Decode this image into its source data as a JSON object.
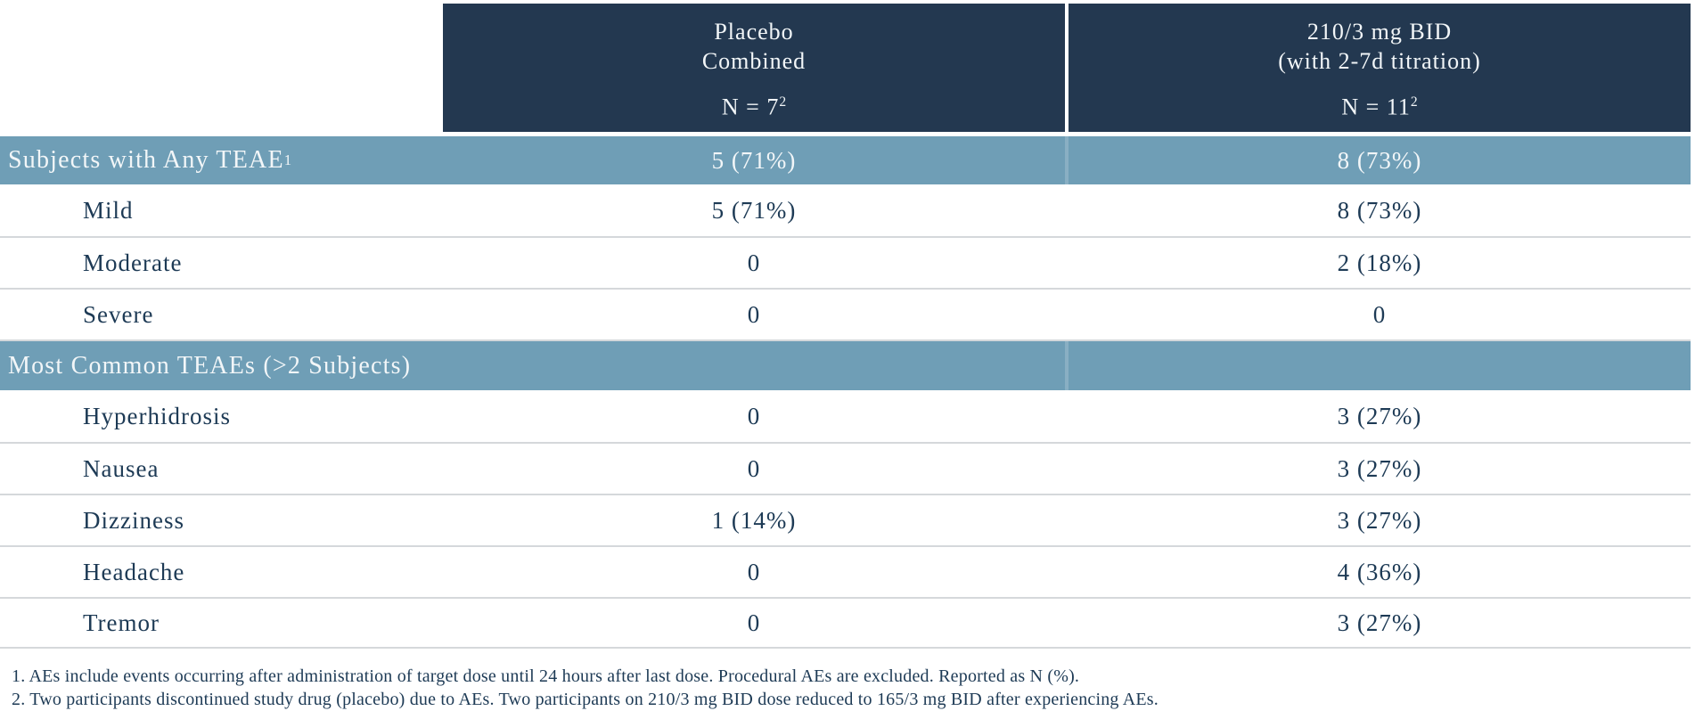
{
  "colors": {
    "header_background": "#233850",
    "section_background": "#6f9eb6",
    "body_text": "#1d3a55",
    "header_text": "#f2f6f8",
    "divider": "#d5d8db"
  },
  "table": {
    "columns": [
      {
        "title_line1": "Placebo",
        "title_line2": "Combined",
        "n_text": "N = 7",
        "n_sup": "2"
      },
      {
        "title_line1": "210/3 mg BID",
        "title_line2": "(with 2-7d titration)",
        "n_text": "N = 11",
        "n_sup": "2"
      }
    ],
    "sections": [
      {
        "header": {
          "label": "Subjects with Any TEAE",
          "sup": "1",
          "values": [
            "5 (71%)",
            "8 (73%)"
          ]
        },
        "rows": [
          {
            "label": "Mild",
            "values": [
              "5 (71%)",
              "8 (73%)"
            ]
          },
          {
            "label": "Moderate",
            "values": [
              "0",
              "2 (18%)"
            ]
          },
          {
            "label": "Severe",
            "values": [
              "0",
              "0"
            ]
          }
        ]
      },
      {
        "header": {
          "label": "Most Common TEAEs (>2 Subjects)",
          "sup": "",
          "values": [
            "",
            ""
          ]
        },
        "rows": [
          {
            "label": "Hyperhidrosis",
            "values": [
              "0",
              "3 (27%)"
            ]
          },
          {
            "label": "Nausea",
            "values": [
              "0",
              "3 (27%)"
            ]
          },
          {
            "label": "Dizziness",
            "values": [
              "1 (14%)",
              "3 (27%)"
            ]
          },
          {
            "label": "Headache",
            "values": [
              "0",
              "4 (36%)"
            ]
          },
          {
            "label": "Tremor",
            "values": [
              "0",
              "3 (27%)"
            ]
          }
        ]
      }
    ]
  },
  "footnotes": [
    "1. AEs include events occurring after administration of target dose until 24 hours after last dose. Procedural AEs are excluded. Reported as N (%).",
    "2. Two participants discontinued study drug (placebo) due to AEs. Two participants on 210/3 mg BID dose reduced to 165/3 mg BID after experiencing AEs."
  ],
  "chart_data": {
    "type": "table",
    "columns": [
      "",
      "Placebo Combined N = 7 [2]",
      "210/3 mg BID (with 2-7d titration) N = 11 [2]"
    ],
    "rows": [
      [
        "Subjects with Any TEAE [1]",
        "5 (71%)",
        "8 (73%)"
      ],
      [
        "Mild",
        "5 (71%)",
        "8 (73%)"
      ],
      [
        "Moderate",
        "0",
        "2 (18%)"
      ],
      [
        "Severe",
        "0",
        "0"
      ],
      [
        "Most Common TEAEs (>2 Subjects)",
        "",
        ""
      ],
      [
        "Hyperhidrosis",
        "0",
        "3 (27%)"
      ],
      [
        "Nausea",
        "0",
        "3 (27%)"
      ],
      [
        "Dizziness",
        "1 (14%)",
        "3 (27%)"
      ],
      [
        "Headache",
        "0",
        "4 (36%)"
      ],
      [
        "Tremor",
        "0",
        "3 (27%)"
      ]
    ]
  }
}
